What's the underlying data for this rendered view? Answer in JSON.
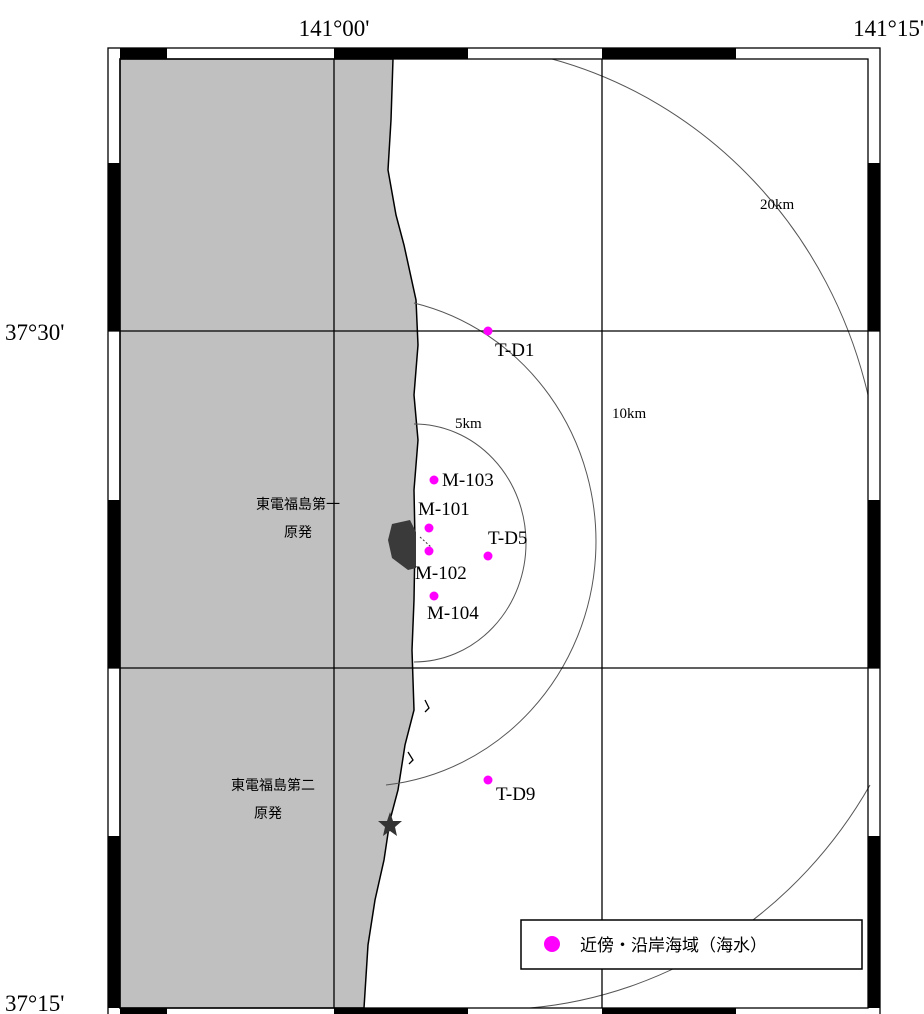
{
  "axes": {
    "lon_labels": [
      "141°00'",
      "141°15'"
    ],
    "lat_labels": [
      "37°30'",
      "37°15'"
    ]
  },
  "plants": {
    "daiichi": [
      "東電福島第一",
      "原発"
    ],
    "daini": [
      "東電福島第二",
      "原発"
    ]
  },
  "rings": [
    "5km",
    "10km",
    "20km"
  ],
  "stations": [
    {
      "id": "T-D1"
    },
    {
      "id": "M-103"
    },
    {
      "id": "M-101"
    },
    {
      "id": "T-D5"
    },
    {
      "id": "M-102"
    },
    {
      "id": "M-104"
    },
    {
      "id": "T-D9"
    }
  ],
  "legend": {
    "label": "近傍・沿岸海域（海水）",
    "marker_color": "#ff00ff"
  },
  "colors": {
    "land": "#c0c0c0",
    "sea": "#ffffff",
    "station": "#ff00ff",
    "grid": "#000000",
    "plant_site": "#3a3a3a"
  }
}
